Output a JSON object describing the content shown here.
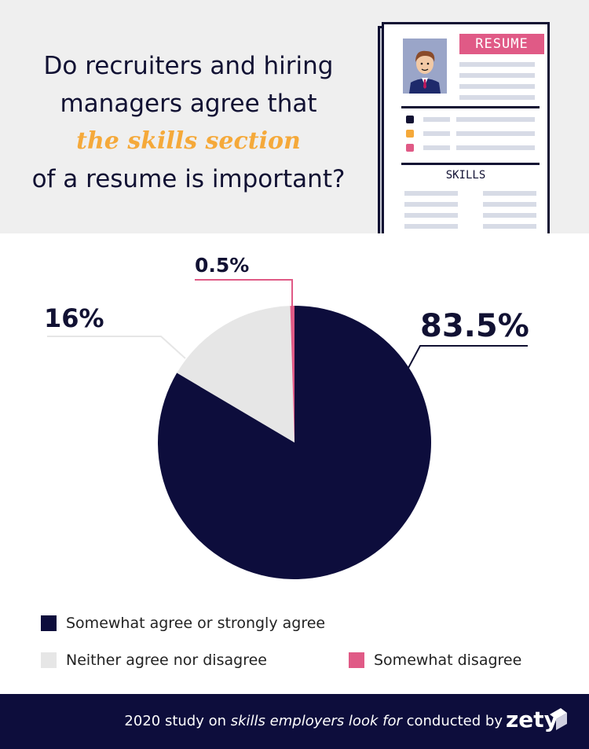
{
  "header": {
    "title_line1": "Do recruiters and hiring",
    "title_line2": "managers agree that",
    "title_highlight": "the skills section",
    "title_line4": "of a resume is important?"
  },
  "illustration": {
    "resume_label": "RESUME",
    "skills_label": "SKILLS"
  },
  "chart_data": {
    "type": "pie",
    "title": "Do recruiters and hiring managers agree that the skills section of a resume is important?",
    "categories": [
      "Somewhat agree or strongly agree",
      "Neither agree nor disagree",
      "Somewhat disagree"
    ],
    "values": [
      83.5,
      16,
      0.5
    ],
    "value_labels": [
      "83.5%",
      "16%",
      "0.5%"
    ],
    "colors": [
      "#0d0d3c",
      "#e6e6e6",
      "#e05a86"
    ],
    "legend_position": "bottom"
  },
  "footer": {
    "text_before": "2020 study on ",
    "text_italic": "skills employers look for",
    "text_after": " conducted by",
    "logo": "zety"
  }
}
